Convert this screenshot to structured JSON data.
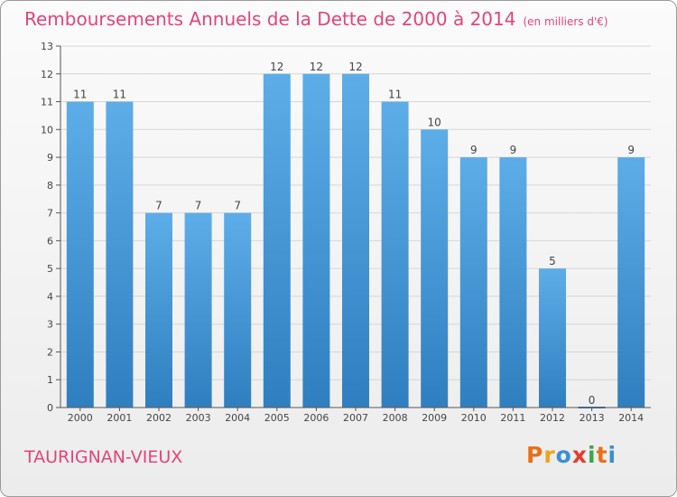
{
  "header": {
    "title": "Remboursements Annuels de la Dette de 2000 à 2014",
    "unit": "(en milliers d'€)"
  },
  "footer": {
    "location": "TAURIGNAN-VIEUX",
    "logo_text": "Proxiti",
    "logo_colors": [
      "#e8701a",
      "#f0a320",
      "#3a8fd6",
      "#e23b2e",
      "#36a84a",
      "#e8701a",
      "#3a8fd6"
    ]
  },
  "colors": {
    "title": "#e0457b",
    "bar_top": "#5dade8",
    "bar_bottom": "#2f7fc0"
  },
  "chart_data": {
    "type": "bar",
    "categories": [
      "2000",
      "2001",
      "2002",
      "2003",
      "2004",
      "2005",
      "2006",
      "2007",
      "2008",
      "2009",
      "2010",
      "2011",
      "2012",
      "2013",
      "2014"
    ],
    "values": [
      11,
      11,
      7,
      7,
      7,
      12,
      12,
      12,
      11,
      10,
      9,
      9,
      5,
      0,
      9
    ],
    "ylim": [
      0,
      13
    ],
    "yticks": [
      0,
      1,
      2,
      3,
      4,
      5,
      6,
      7,
      8,
      9,
      10,
      11,
      12,
      13
    ],
    "grid": true
  }
}
